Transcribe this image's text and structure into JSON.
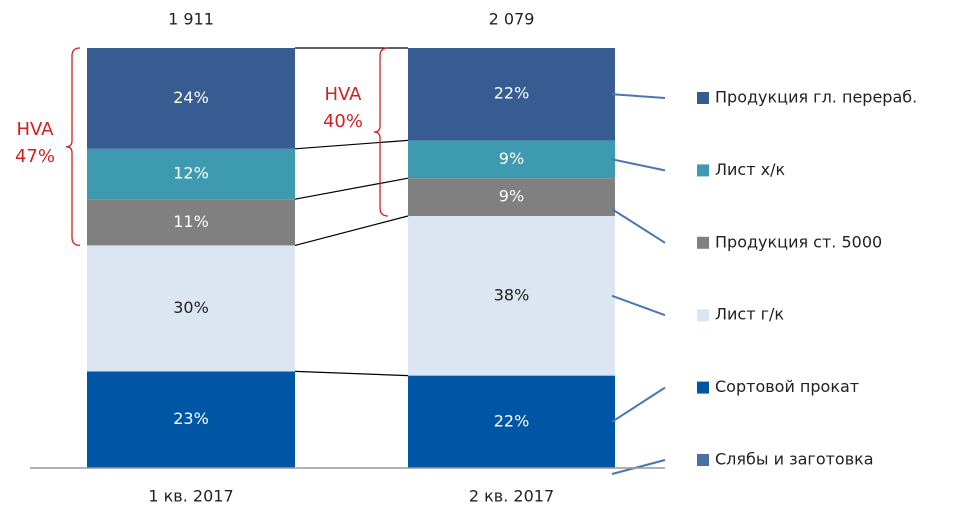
{
  "chart_data": {
    "type": "stacked_bar_100",
    "categories": [
      "1 кв. 2017",
      "2 кв. 2017"
    ],
    "series": [
      {
        "name": "Слябы и заготовка",
        "color": "#4a6fa5",
        "values": [
          0,
          0
        ],
        "value_labels": [
          null,
          null
        ]
      },
      {
        "name": "Сортовой прокат",
        "color": "#0055a5",
        "values": [
          23,
          22
        ],
        "value_labels": [
          "23%",
          "22%"
        ]
      },
      {
        "name": "Лист г/к",
        "color": "#dce6f2",
        "values": [
          30,
          38
        ],
        "value_labels": [
          "30%",
          "38%"
        ]
      },
      {
        "name": "Продукция ст. 5000",
        "color": "#808080",
        "values": [
          11,
          9
        ],
        "value_labels": [
          "11%",
          "9%"
        ]
      },
      {
        "name": "Лист х/к",
        "color": "#3e9ab0",
        "values": [
          12,
          9
        ],
        "value_labels": [
          "12%",
          "9%"
        ]
      },
      {
        "name": "Продукция гл. перераб.",
        "color": "#365c91",
        "values": [
          24,
          22
        ],
        "value_labels": [
          "24%",
          "22%"
        ]
      }
    ],
    "totals": {
      "values": [
        1911,
        2079
      ],
      "value_labels": [
        "1 911",
        "2 079"
      ]
    },
    "annotations": [
      [
        "HVA",
        "47%"
      ],
      [
        "HVA",
        "40%"
      ]
    ],
    "ylim": [
      0,
      100
    ]
  }
}
